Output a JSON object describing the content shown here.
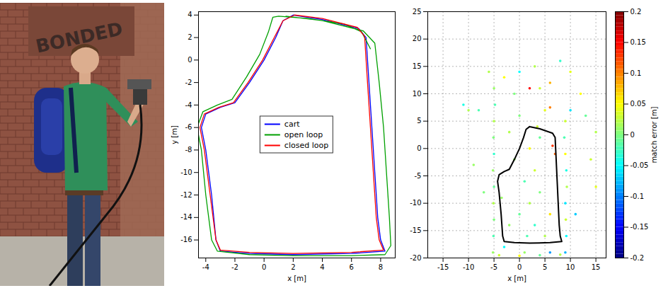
{
  "photo": {
    "sign_text": "BONDED"
  },
  "chart_data": [
    {
      "type": "line",
      "x_label": "x [m]",
      "y_label": "y [m]",
      "xlim": [
        -4.5,
        9
      ],
      "xticks": [
        -4,
        -2,
        0,
        2,
        4,
        6,
        8
      ],
      "ylim": [
        -17.6,
        4.3
      ],
      "yticks": [
        -16,
        -14,
        -12,
        -10,
        -8,
        -6,
        -4,
        -2,
        0,
        2,
        4
      ],
      "grid": false,
      "legend": "center",
      "series": [
        {
          "name": "cart",
          "color": "#0000ff",
          "x": [
            2,
            4,
            6.5,
            7,
            7.2,
            7.4,
            7.6,
            7.8,
            8,
            8.3,
            6,
            2,
            -1,
            -3,
            -3.3,
            -3.6,
            -4,
            -4.3,
            -4,
            -3,
            -2,
            -1,
            0,
            0.8,
            1.3,
            2
          ],
          "y": [
            4,
            3.6,
            2.8,
            2,
            -2,
            -6,
            -10,
            -14,
            -16,
            -17,
            -17.2,
            -17.3,
            -17.2,
            -17,
            -16,
            -12,
            -8,
            -6,
            -4.8,
            -4.2,
            -3.8,
            -2,
            0,
            2,
            3.5,
            4
          ]
        },
        {
          "name": "open loop",
          "color": "#00a000",
          "x": [
            1.5,
            4,
            6.8,
            7.6,
            7.9,
            8.2,
            8.4,
            8.6,
            8.7,
            8.3,
            6,
            2,
            -1,
            -3.2,
            -3.6,
            -4,
            -4.3,
            -4.6,
            -4.2,
            -3.2,
            -2.2,
            -1.2,
            -0.3,
            0.3,
            0.6,
            1,
            3,
            5.5,
            6.7,
            7.3
          ],
          "y": [
            3.9,
            3.5,
            2.6,
            1.5,
            -2,
            -6,
            -10,
            -14,
            -16.5,
            -17.3,
            -17.4,
            -17.4,
            -17.3,
            -17,
            -16,
            -12,
            -8,
            -6,
            -4.6,
            -4,
            -3.5,
            -1.5,
            0.5,
            2.5,
            3.8,
            3.9,
            3.7,
            3.2,
            2.5,
            1
          ]
        },
        {
          "name": "closed loop",
          "color": "#ff0000",
          "x": [
            2.1,
            4,
            6.4,
            6.9,
            7.1,
            7.3,
            7.5,
            7.7,
            7.9,
            8.2,
            6,
            2,
            -1,
            -3,
            -3.3,
            -3.7,
            -4.1,
            -4.4,
            -4.1,
            -3.1,
            -2.1,
            -1.1,
            -0.1,
            0.7,
            1.3,
            2.1
          ],
          "y": [
            4,
            3.7,
            2.9,
            2.1,
            -2,
            -6,
            -10,
            -14,
            -16,
            -16.9,
            -17.1,
            -17.2,
            -17.1,
            -16.9,
            -16,
            -12,
            -8,
            -6,
            -4.8,
            -4.2,
            -3.8,
            -2,
            0,
            2,
            3.5,
            4
          ]
        }
      ]
    },
    {
      "type": "scatter",
      "x_label": "x [m]",
      "xlim": [
        -18,
        17
      ],
      "xticks": [
        -15,
        -10,
        -5,
        0,
        5,
        10,
        15
      ],
      "ylim": [
        -20,
        25
      ],
      "yticks": [
        -20,
        -15,
        -10,
        -5,
        0,
        5,
        10,
        15,
        20,
        25
      ],
      "grid": true,
      "points": {
        "x": [
          -5.2,
          -5.1,
          -5,
          -5.1,
          -5,
          -5.2,
          -5,
          -5.1,
          -5,
          -4.8,
          -5,
          9,
          9.2,
          9.1,
          9,
          9.3,
          9.2,
          9,
          8.8,
          9,
          14,
          15,
          13,
          15,
          -3,
          0,
          3,
          6,
          8,
          10,
          -1,
          4,
          2,
          -2,
          0,
          2,
          4,
          1,
          3,
          -1,
          2,
          4,
          -2,
          0,
          5,
          3,
          6,
          5,
          -3,
          1,
          6,
          -10,
          -8,
          6,
          10,
          -4,
          0,
          4,
          8,
          -11,
          -9,
          6.5,
          7,
          12,
          11,
          -6,
          -7,
          3.5,
          1.5,
          -3.5
        ],
        "y": [
          -19,
          -16,
          -13,
          -10,
          -7,
          -4,
          -1,
          2,
          5,
          8,
          11,
          -19,
          -16,
          -13,
          -10,
          -7,
          -4,
          -1,
          2,
          5,
          -2,
          3,
          6,
          -7,
          13,
          14,
          15,
          12,
          16,
          14,
          10,
          11,
          11,
          -14,
          -12,
          -10,
          -8,
          -6,
          -4,
          -2,
          0,
          2,
          3,
          6,
          7,
          -14,
          -12,
          -16,
          -18,
          -19,
          -19,
          7,
          7,
          7.5,
          7,
          -19.5,
          -19.6,
          -19.5,
          -19.4,
          8,
          -3,
          0.5,
          -1,
          10,
          -12,
          14,
          -8,
          4,
          -16,
          -9
        ],
        "error": [
          0.01,
          -0.02,
          0,
          0.02,
          -0.01,
          0.01,
          -0.03,
          0,
          0.02,
          -0.02,
          0.01,
          -0.08,
          -0.05,
          0.03,
          -0.06,
          0.02,
          -0.04,
          0.05,
          -0.02,
          0.03,
          0.03,
          0.02,
          -0.01,
          0.04,
          0.05,
          -0.05,
          0.02,
          0.08,
          -0.03,
          0.04,
          0,
          0.03,
          0.15,
          0.01,
          -0.01,
          0.02,
          0,
          -0.02,
          0.03,
          0.01,
          0.05,
          -0.01,
          0.02,
          0,
          0.04,
          -0.03,
          0.06,
          0.02,
          -0.05,
          0.01,
          -0.09,
          0.02,
          -0.02,
          0.1,
          -0.06,
          0.03,
          0.05,
          -0.01,
          0.02,
          -0.04,
          0.01,
          0.13,
          0.11,
          0.05,
          -0.07,
          0.02,
          0,
          0.03,
          -0.02,
          0.01
        ]
      },
      "trajectory": {
        "color": "#000000",
        "x": [
          2,
          4,
          6.5,
          7,
          7.2,
          7.4,
          7.6,
          7.8,
          8,
          8.3,
          6,
          2,
          -1,
          -3,
          -3.3,
          -3.6,
          -4,
          -4.3,
          -4,
          -3,
          -2,
          -1,
          0,
          0.8,
          1.3,
          2
        ],
        "y": [
          4,
          3.6,
          2.8,
          2,
          -2,
          -6,
          -10,
          -14,
          -16,
          -17,
          -17.2,
          -17.3,
          -17.2,
          -17,
          -16,
          -12,
          -8,
          -6,
          -4.8,
          -4.2,
          -3.8,
          -2,
          0,
          2,
          3.5,
          4
        ]
      },
      "colorbar": {
        "label": "match error [m]",
        "lim": [
          -0.2,
          0.2
        ],
        "ticks": [
          -0.2,
          -0.15,
          -0.1,
          -0.05,
          0,
          0.05,
          0.1,
          0.15,
          0.2
        ]
      }
    }
  ]
}
